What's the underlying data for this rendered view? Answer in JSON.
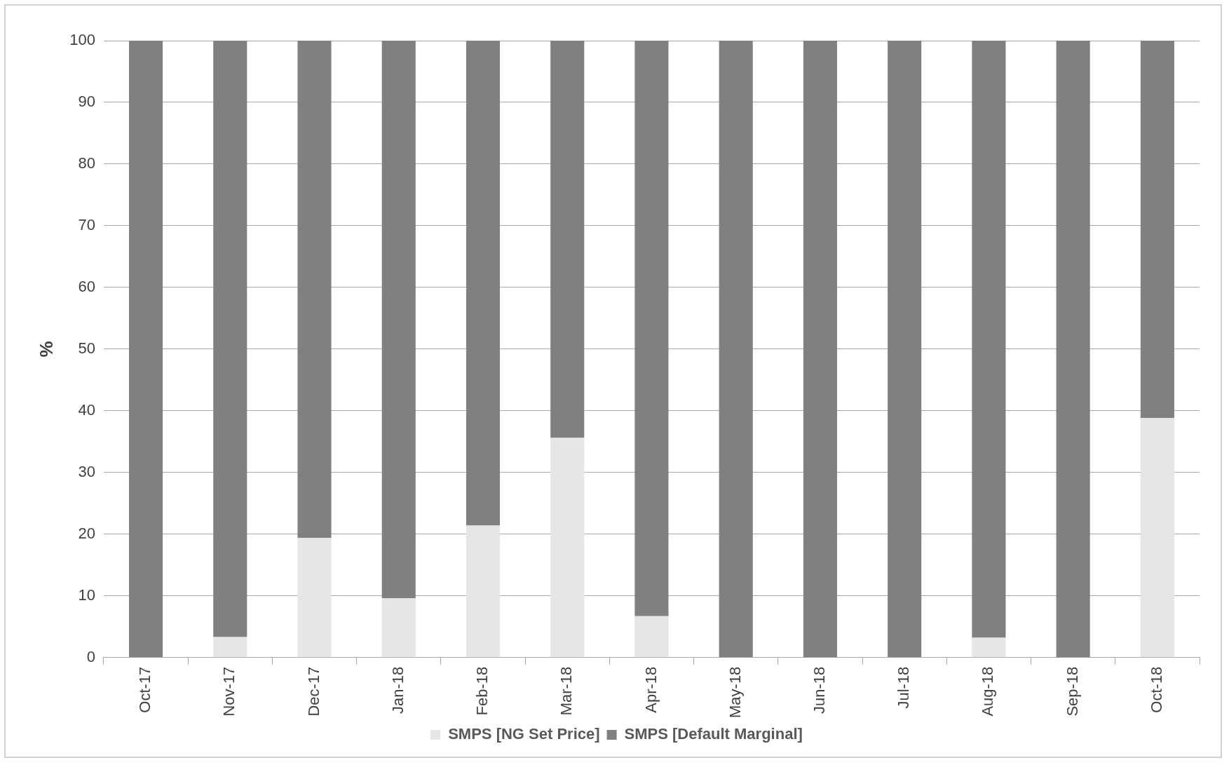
{
  "chart_data": {
    "type": "bar",
    "stacked": true,
    "ylabel": "%",
    "categories": [
      "Oct-17",
      "Nov-17",
      "Dec-17",
      "Jan-18",
      "Feb-18",
      "Mar-18",
      "Apr-18",
      "May-18",
      "Jun-18",
      "Jul-18",
      "Aug-18",
      "Sep-18",
      "Oct-18"
    ],
    "series": [
      {
        "name": "SMPS [NG Set Price]",
        "color": "#e6e6e6",
        "values": [
          0,
          3.3,
          19.4,
          9.6,
          21.4,
          35.6,
          6.7,
          0,
          0,
          0,
          3.2,
          0,
          38.8
        ]
      },
      {
        "name": "SMPS [Default Marginal]",
        "color": "#808080",
        "values": [
          100,
          96.7,
          80.6,
          90.4,
          78.6,
          64.4,
          93.3,
          100,
          100,
          100,
          96.8,
          100,
          61.2
        ]
      }
    ],
    "ylim": [
      0,
      100
    ],
    "yticks": [
      0,
      10,
      20,
      30,
      40,
      50,
      60,
      70,
      80,
      90,
      100
    ],
    "grid": "y",
    "legend": "bottom"
  }
}
